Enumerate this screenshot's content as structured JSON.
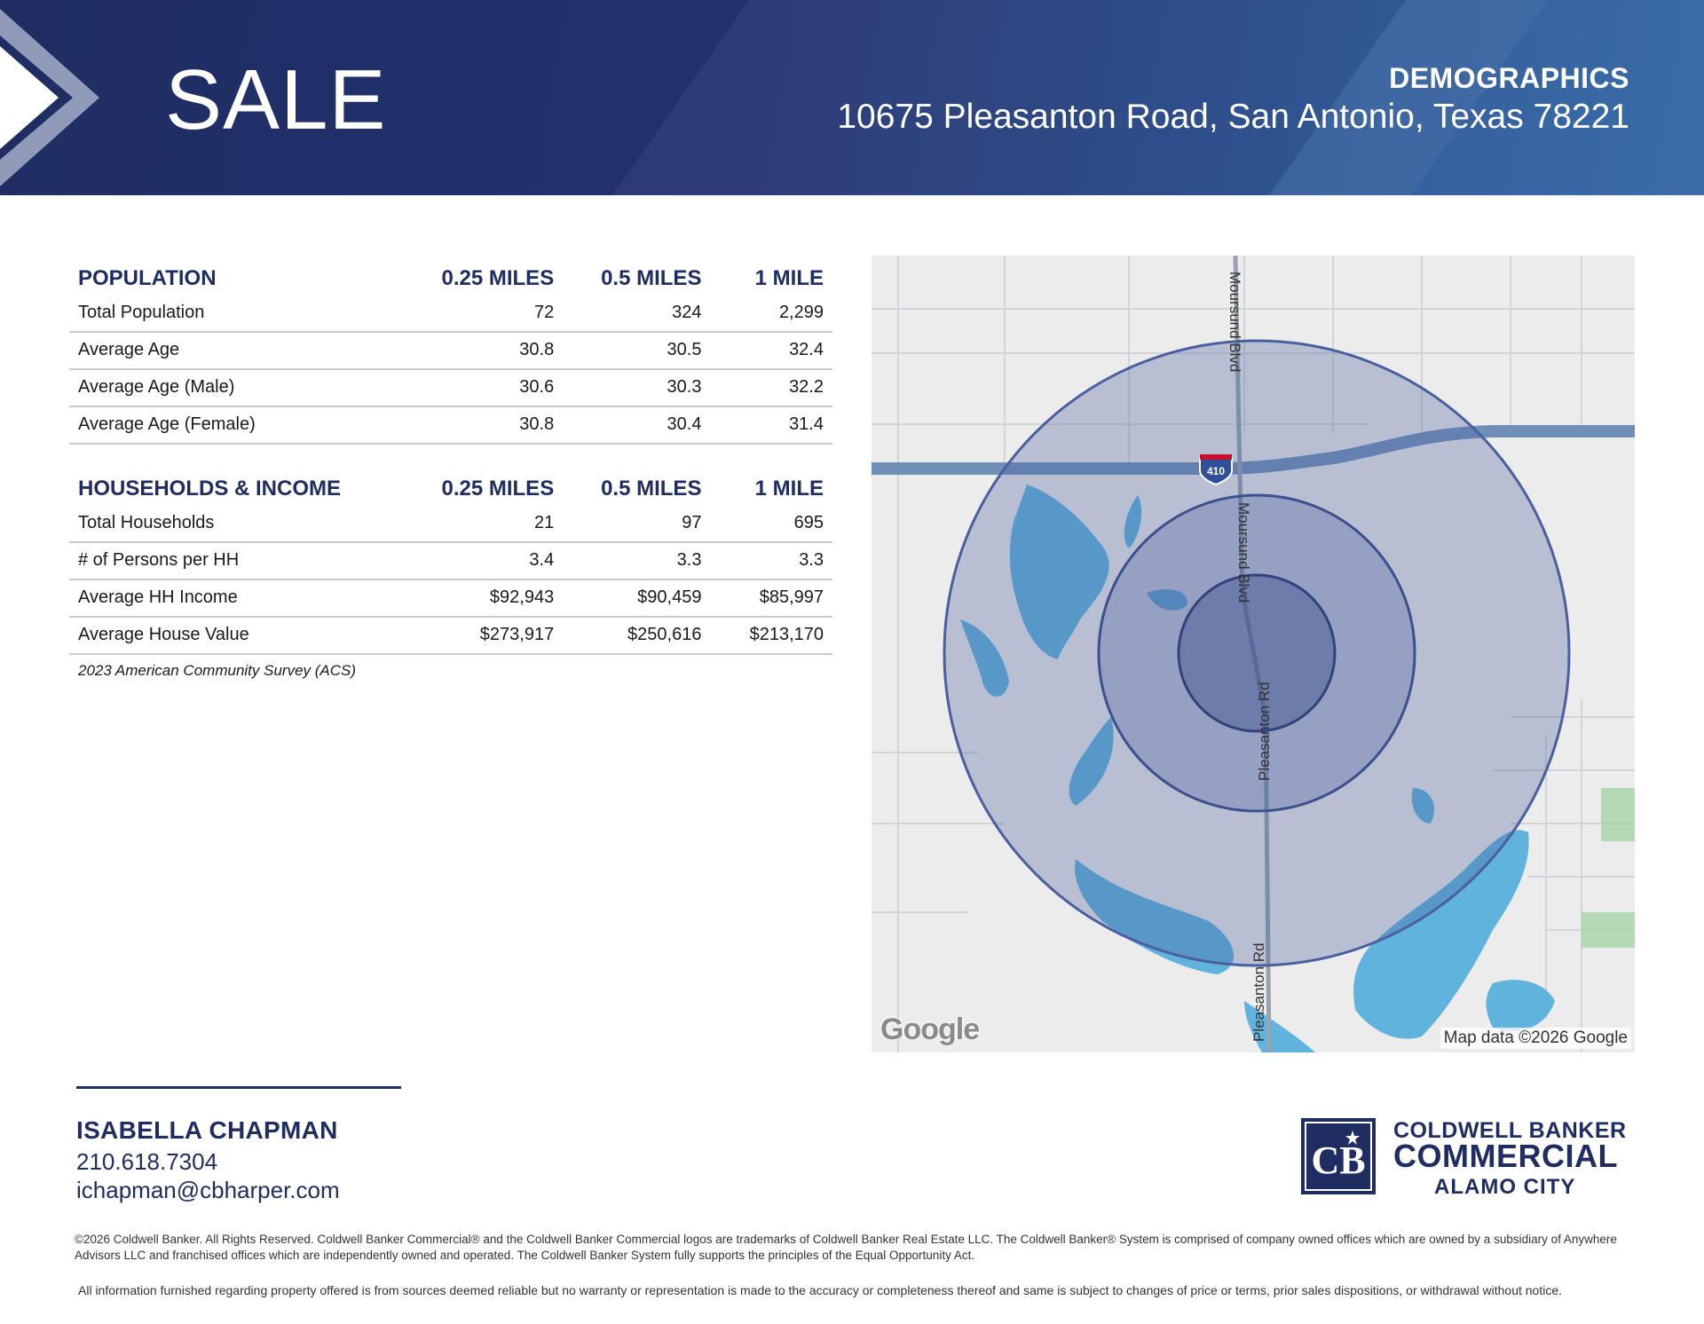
{
  "header": {
    "title": "SALE",
    "kicker": "DEMOGRAPHICS",
    "address": "10675 Pleasanton Road, San Antonio, Texas 78221"
  },
  "population": {
    "heading": "POPULATION",
    "columns": [
      "0.25 MILES",
      "0.5 MILES",
      "1 MILE"
    ],
    "rows": [
      {
        "label": "Total Population",
        "values": [
          "72",
          "324",
          "2,299"
        ]
      },
      {
        "label": "Average Age",
        "values": [
          "30.8",
          "30.5",
          "32.4"
        ]
      },
      {
        "label": "Average Age (Male)",
        "values": [
          "30.6",
          "30.3",
          "32.2"
        ]
      },
      {
        "label": "Average Age (Female)",
        "values": [
          "30.8",
          "30.4",
          "31.4"
        ]
      }
    ]
  },
  "households": {
    "heading": "HOUSEHOLDS & INCOME",
    "columns": [
      "0.25 MILES",
      "0.5 MILES",
      "1 MILE"
    ],
    "rows": [
      {
        "label": "Total Households",
        "values": [
          "21",
          "97",
          "695"
        ]
      },
      {
        "label": "# of Persons per HH",
        "values": [
          "3.4",
          "3.3",
          "3.3"
        ]
      },
      {
        "label": "Average HH Income",
        "values": [
          "$92,943",
          "$90,459",
          "$85,997"
        ]
      },
      {
        "label": "Average House Value",
        "values": [
          "$273,917",
          "$250,616",
          "$213,170"
        ]
      }
    ],
    "source": "2023 American Community Survey (ACS)"
  },
  "map": {
    "road_labels": {
      "north": "Moursund Blvd",
      "mid": "Moursund Blvd",
      "center": "Pleasanton Rd",
      "south": "Pleasanton Rd"
    },
    "highway_shield": "410",
    "logo": "Google",
    "attribution": "Map data ©2026 Google",
    "ring_color": "#4a5f9e",
    "water_color": "#5fb3dd"
  },
  "agent": {
    "name": "ISABELLA CHAPMAN",
    "phone": "210.618.7304",
    "email": "ichapman@cbharper.com"
  },
  "brand": {
    "line1": "COLDWELL BANKER",
    "line2": "COMMERCIAL",
    "line3": "ALAMO CITY",
    "mark": "CB",
    "color": "#1f2d62"
  },
  "footer": {
    "legal": "©2026 Coldwell Banker. All Rights Reserved. Coldwell Banker Commercial® and the Coldwell Banker Commercial logos are trademarks of Coldwell Banker Real Estate LLC. The Coldwell Banker® System is comprised of company owned offices which are owned by a subsidiary of Anywhere Advisors LLC and franchised offices which are independently owned and operated. The Coldwell Banker System fully supports the principles of the Equal Opportunity Act.",
    "disclaimer": "All information furnished regarding property offered is from sources deemed reliable but no warranty or representation is made to the accuracy or completeness thereof and same is subject to changes of price or terms, prior sales dispositions, or withdrawal without notice."
  }
}
